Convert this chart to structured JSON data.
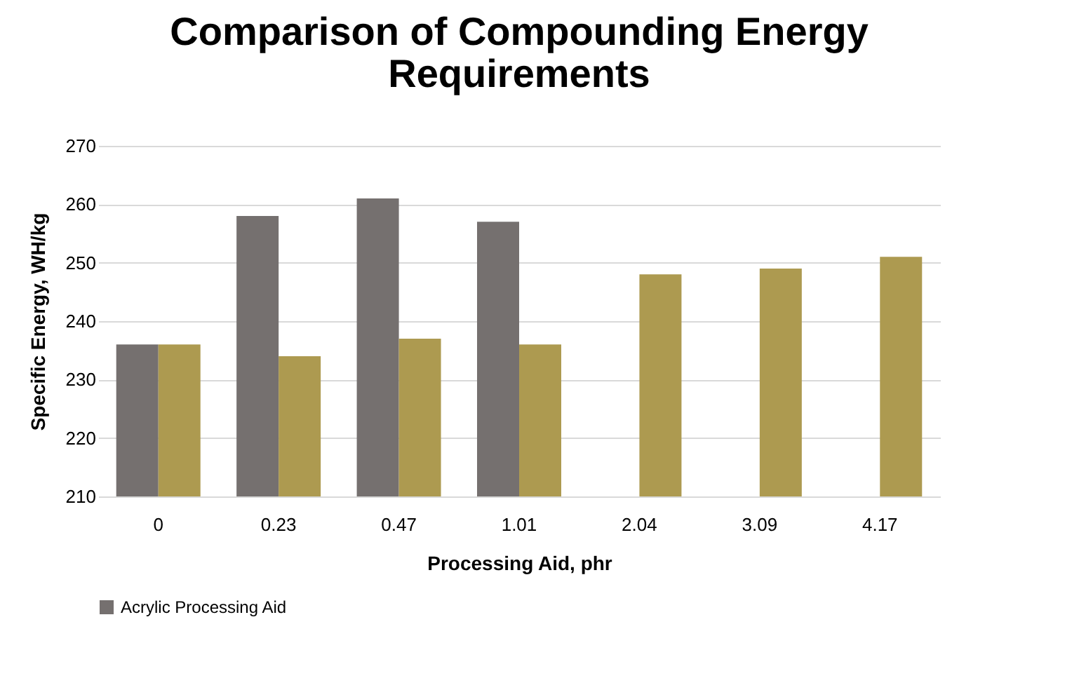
{
  "chart_data": {
    "type": "bar",
    "title": [
      "Comparison of Compounding Energy",
      "Requirements"
    ],
    "xlabel": "Processing Aid, phr",
    "ylabel": "Specific Energy, WH/kg",
    "categories": [
      "0",
      "0.23",
      "0.47",
      "1.01",
      "2.04",
      "3.09",
      "4.17"
    ],
    "series": [
      {
        "name": "Acrylic Processing Aid",
        "color": "#75706f",
        "values": [
          236,
          258,
          261,
          257,
          null,
          null,
          null
        ]
      },
      {
        "color": "#ad9a50",
        "values": [
          236,
          234,
          237,
          236,
          248,
          249,
          251
        ]
      }
    ],
    "ylim": [
      210,
      270
    ],
    "yticks": [
      210,
      220,
      230,
      240,
      250,
      260,
      270
    ],
    "grid": "y",
    "legend": "bottom"
  }
}
